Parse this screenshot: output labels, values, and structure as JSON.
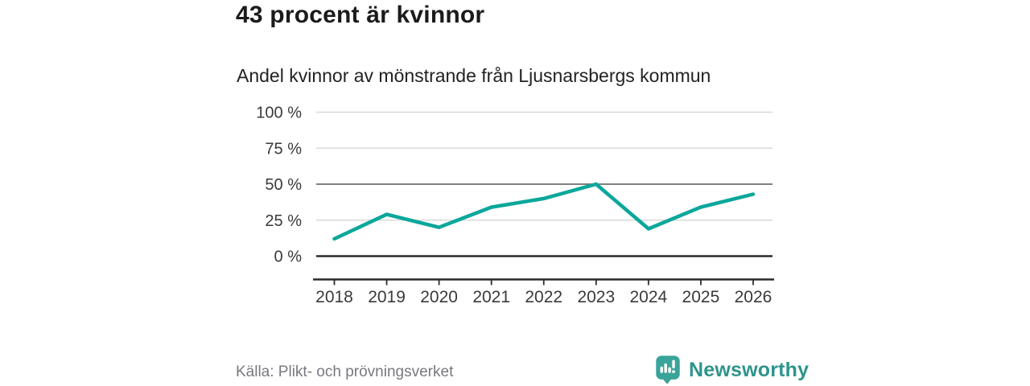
{
  "header": {
    "title": "43 procent är kvinnor",
    "subtitle": "Andel kvinnor av mönstrande från Ljusnarsbergs kommun"
  },
  "chart_data": {
    "type": "line",
    "title": "Andel kvinnor av mönstrande från Ljusnarsbergs kommun",
    "x": [
      "2018",
      "2019",
      "2020",
      "2021",
      "2022",
      "2023",
      "2024",
      "2025",
      "2026"
    ],
    "series": [
      {
        "name": "Andel kvinnor",
        "values": [
          12,
          29,
          20,
          34,
          40,
          50,
          19,
          34,
          43
        ]
      }
    ],
    "unit": "%",
    "ylim": [
      0,
      100
    ],
    "yticks": [
      {
        "value": 100,
        "label": "100 %"
      },
      {
        "value": 75,
        "label": "75 %"
      },
      {
        "value": 50,
        "label": "50 %"
      },
      {
        "value": 25,
        "label": "25 %"
      },
      {
        "value": 0,
        "label": "0 %"
      }
    ],
    "grid": true,
    "legend": false
  },
  "footer": {
    "source": "Källa: Plikt- och prövningsverket",
    "brand": "Newsworthy"
  },
  "colors": {
    "line": "#0ba79b",
    "grid_light": "#d9d9d9",
    "grid_mid": "#6e6e6e",
    "axis": "#2b2b2b",
    "tick_label": "#3a3a3a",
    "source_text": "#78787f",
    "brand_icon": "#3aa39a",
    "brand_text": "#2e948c"
  },
  "icons": {
    "brand_logo": "newsworthy-bar-chart-bubble"
  }
}
